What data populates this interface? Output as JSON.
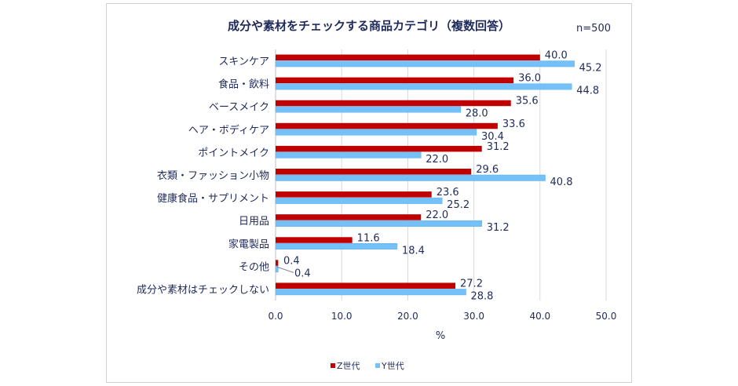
{
  "chart_data": {
    "type": "bar",
    "orientation": "horizontal",
    "title": "成分や素材をチェックする商品カテゴリ（複数回答）",
    "annotation": "n=500",
    "xlabel": "%",
    "ylabel": "",
    "xlim": [
      0,
      50
    ],
    "xticks": [
      "0.0",
      "10.0",
      "20.0",
      "30.0",
      "40.0",
      "50.0"
    ],
    "grid": true,
    "legend_position": "bottom",
    "categories": [
      "スキンケア",
      "食品・飲料",
      "ベースメイク",
      "ヘア・ボディケア",
      "ポイントメイク",
      "衣類・ファッション小物",
      "健康食品・サプリメント",
      "日用品",
      "家電製品",
      "その他",
      "成分や素材はチェックしない"
    ],
    "series": [
      {
        "name": "Z世代",
        "color": "#c00000",
        "values": [
          40.0,
          36.0,
          35.6,
          33.6,
          31.2,
          29.6,
          23.6,
          22.0,
          11.6,
          0.4,
          27.2
        ]
      },
      {
        "name": "Y世代",
        "color": "#75c1f7",
        "values": [
          45.2,
          44.8,
          28.0,
          30.4,
          22.0,
          40.8,
          25.2,
          31.2,
          18.4,
          0.4,
          28.8
        ]
      }
    ]
  }
}
